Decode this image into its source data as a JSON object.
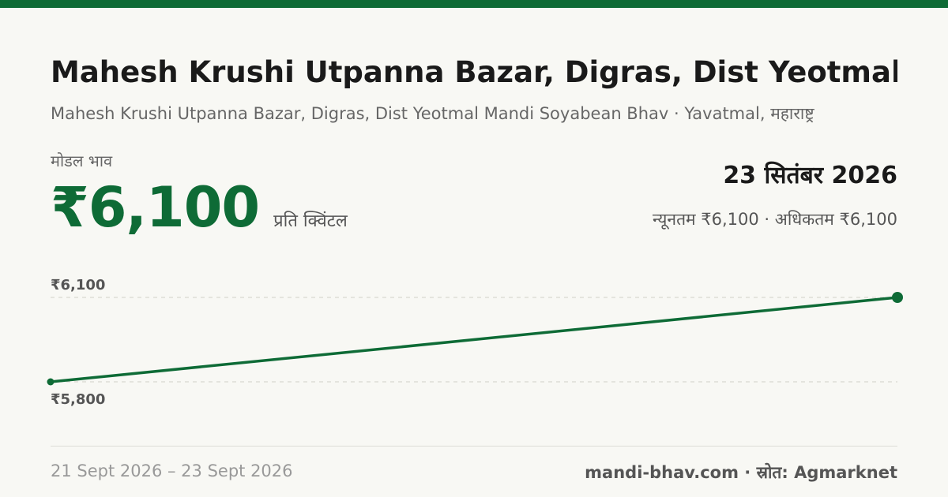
{
  "header": {
    "title": "Mahesh Krushi Utpanna Bazar, Digras, Dist Yeotmal...",
    "subtitle": "Mahesh Krushi Utpanna Bazar, Digras, Dist Yeotmal Mandi Soyabean Bhav · Yavatmal, महाराष्ट्र"
  },
  "price": {
    "label": "मोडल भाव",
    "value": "₹6,100",
    "unit": "प्रति क्विंटल"
  },
  "summary": {
    "date": "23 सितंबर 2026",
    "minmax": "न्यूनतम ₹6,100 · अधिकतम ₹6,100"
  },
  "footer": {
    "range": "21 Sept 2026 – 23 Sept 2026",
    "brand": "mandi-bhav.com · स्रोत: Agmarknet"
  },
  "colors": {
    "accent": "#0e6b36",
    "background": "#f8f8f4"
  },
  "chart_data": {
    "type": "line",
    "x": [
      "21 Sept 2026",
      "23 Sept 2026"
    ],
    "values": [
      5800,
      6100
    ],
    "ylim": [
      5800,
      6100
    ],
    "yticks": [
      {
        "value": 6100,
        "label": "₹6,100"
      },
      {
        "value": 5800,
        "label": "₹5,800"
      }
    ],
    "grid": true
  }
}
